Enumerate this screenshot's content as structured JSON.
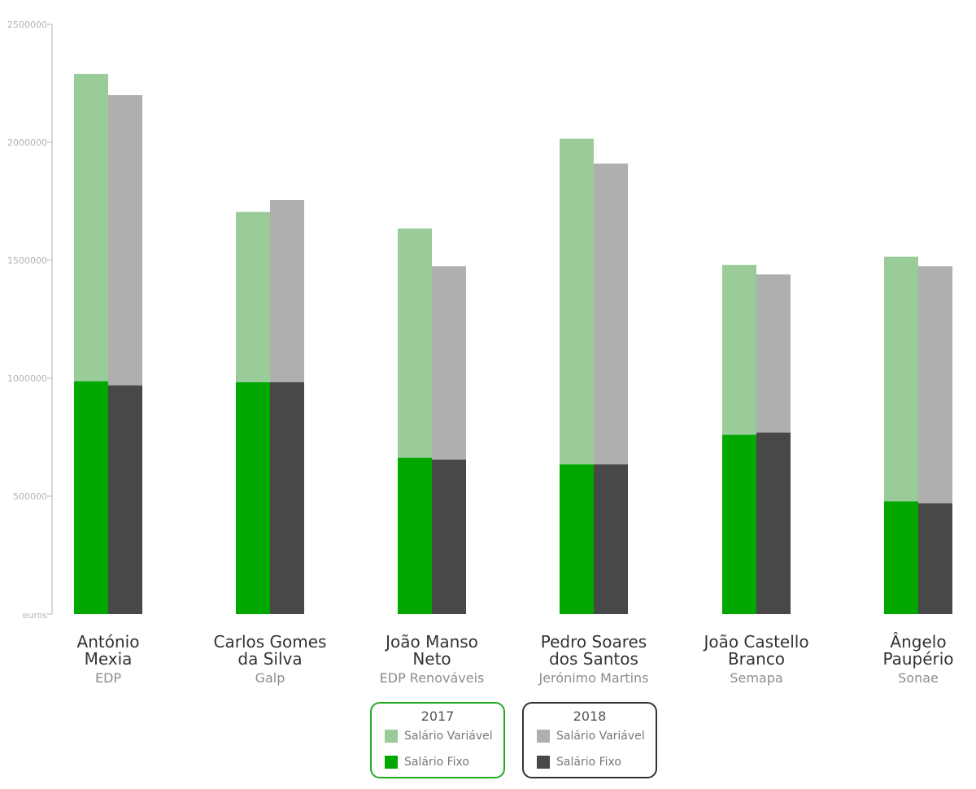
{
  "chart_data": {
    "type": "bar",
    "subtype": "grouped-stacked",
    "ylabel": "euros",
    "ylim": [
      0,
      2500000
    ],
    "yticks": [
      500000,
      1000000,
      1500000,
      2000000,
      2500000
    ],
    "ytick_labels": [
      "500000",
      "1000000",
      "1500000",
      "2000000",
      "2500000"
    ],
    "categories": [
      {
        "name_lines": [
          "António",
          "Mexia"
        ],
        "company": "EDP"
      },
      {
        "name_lines": [
          "Carlos Gomes",
          "da Silva"
        ],
        "company": "Galp"
      },
      {
        "name_lines": [
          "João Manso",
          "Neto"
        ],
        "company": "EDP Renováveis"
      },
      {
        "name_lines": [
          "Pedro Soares",
          "dos Santos"
        ],
        "company": "Jerónimo Martins"
      },
      {
        "name_lines": [
          "João Castello",
          "Branco"
        ],
        "company": "Semapa"
      },
      {
        "name_lines": [
          "Ângelo",
          "Paupério"
        ],
        "company": "Sonae"
      }
    ],
    "years": [
      {
        "year": "2017",
        "fixed": [
          987000,
          983000,
          663000,
          635000,
          760000,
          478000
        ],
        "total": [
          2290000,
          1705000,
          1635000,
          2015000,
          1480000,
          1515000
        ],
        "fixed_color": "#00a800",
        "variable_color": "#99cc99"
      },
      {
        "year": "2018",
        "fixed": [
          970000,
          983000,
          655000,
          635000,
          770000,
          470000
        ],
        "total": [
          2200000,
          1755000,
          1475000,
          1910000,
          1440000,
          1475000
        ],
        "fixed_color": "#484848",
        "variable_color": "#afafaf"
      }
    ]
  },
  "legend": [
    {
      "title": "2017",
      "border_color": "#22aa22",
      "items": [
        {
          "label": "Salário Variável",
          "color": "#99cc99"
        },
        {
          "label": "Salário Fixo",
          "color": "#00a800"
        }
      ]
    },
    {
      "title": "2018",
      "border_color": "#333333",
      "items": [
        {
          "label": "Salário Variável",
          "color": "#afafaf"
        },
        {
          "label": "Salário Fixo",
          "color": "#484848"
        }
      ]
    }
  ]
}
